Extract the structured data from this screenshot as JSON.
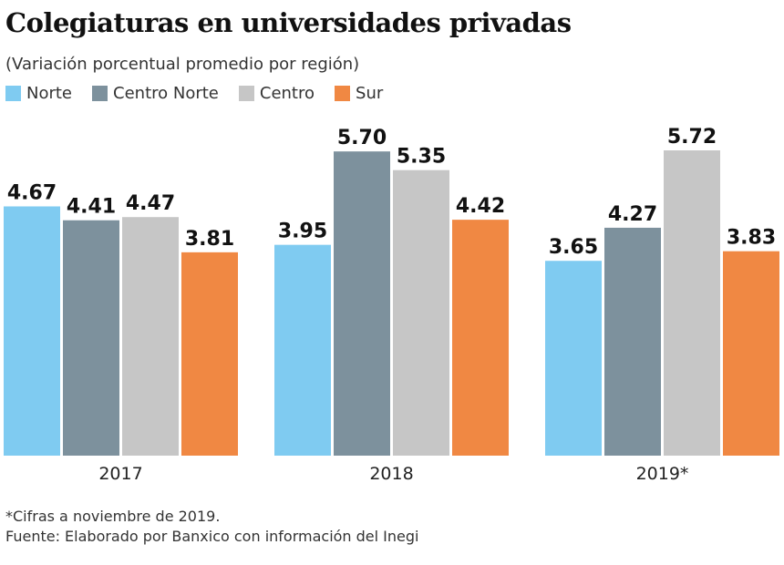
{
  "chart_data": {
    "type": "bar",
    "title": "Colegiaturas en universidades privadas",
    "subtitle": "(Variación porcentual promedio por región)",
    "categories": [
      "2017",
      "2018",
      "2019*"
    ],
    "series": [
      {
        "name": "Norte",
        "color": "#7fcbf1",
        "values": [
          4.67,
          3.95,
          3.65
        ]
      },
      {
        "name": "Centro Norte",
        "color": "#7d919d",
        "values": [
          4.41,
          5.7,
          4.27
        ]
      },
      {
        "name": "Centro",
        "color": "#c6c6c6",
        "values": [
          4.47,
          5.35,
          5.72
        ]
      },
      {
        "name": "Sur",
        "color": "#f08843",
        "values": [
          3.81,
          4.42,
          3.83
        ]
      }
    ],
    "data_labels": [
      [
        "4.67",
        "3.95",
        "3.65"
      ],
      [
        "4.41",
        "5.70",
        "4.27"
      ],
      [
        "4.47",
        "5.35",
        "5.72"
      ],
      [
        "3.81",
        "4.42",
        "3.83"
      ]
    ],
    "ylim": [
      0,
      5.72
    ],
    "grid": false,
    "legend": "top-left",
    "footnote": "*Cifras a noviembre de 2019.",
    "source": "Fuente: Elaborado por Banxico con información del Inegi"
  }
}
